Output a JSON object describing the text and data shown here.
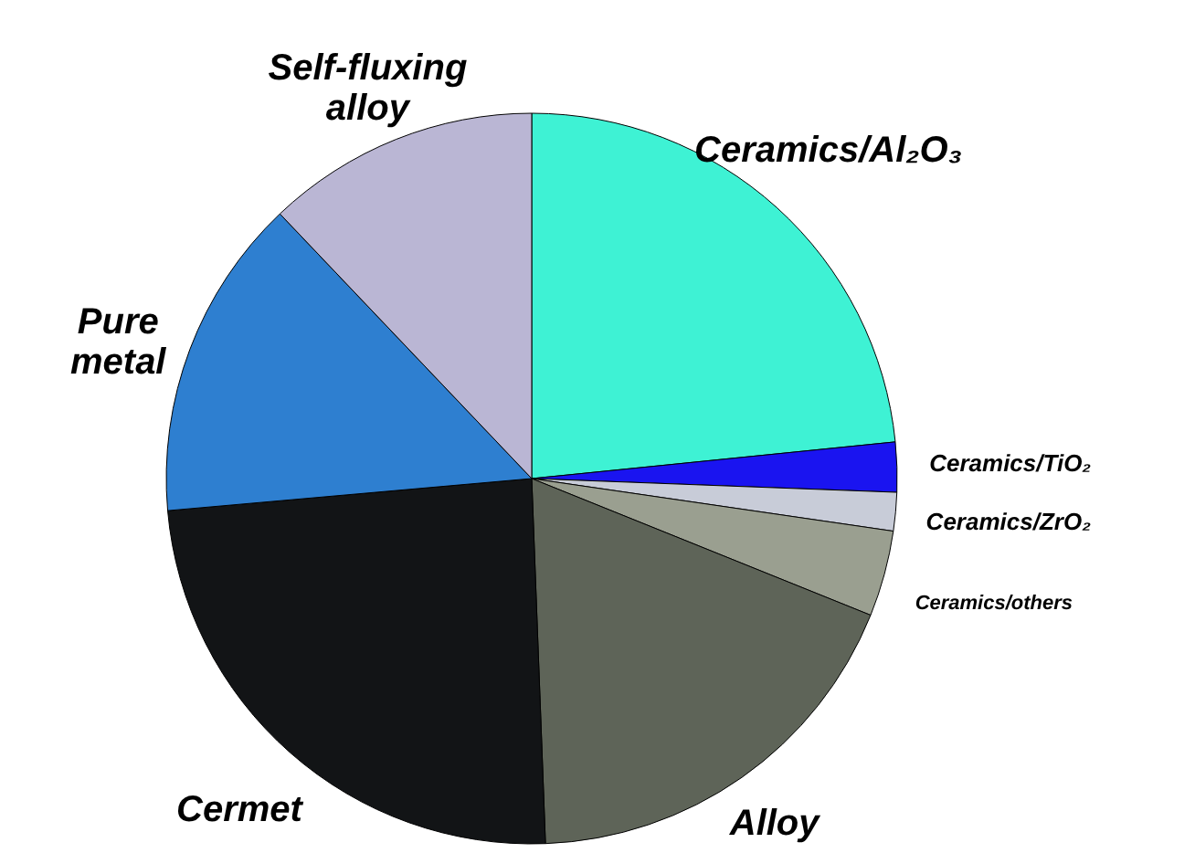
{
  "chart_data": {
    "type": "pie",
    "categories": [
      "Ceramics/Al₂O₃",
      "Ceramics/TiO₂",
      "Ceramics/ZrO₂",
      "Ceramics/others",
      "Alloy",
      "Cermet",
      "Pure metal",
      "Self-fluxing alloy"
    ],
    "values": [
      23.4,
      2.2,
      1.7,
      3.8,
      18.3,
      24.2,
      14.3,
      12.1
    ],
    "colors": [
      "#3ef2d4",
      "#1a14f0",
      "#c8ccd8",
      "#9a9f90",
      "#5e6458",
      "#121416",
      "#2e7fd0",
      "#bab6d4"
    ]
  }
}
